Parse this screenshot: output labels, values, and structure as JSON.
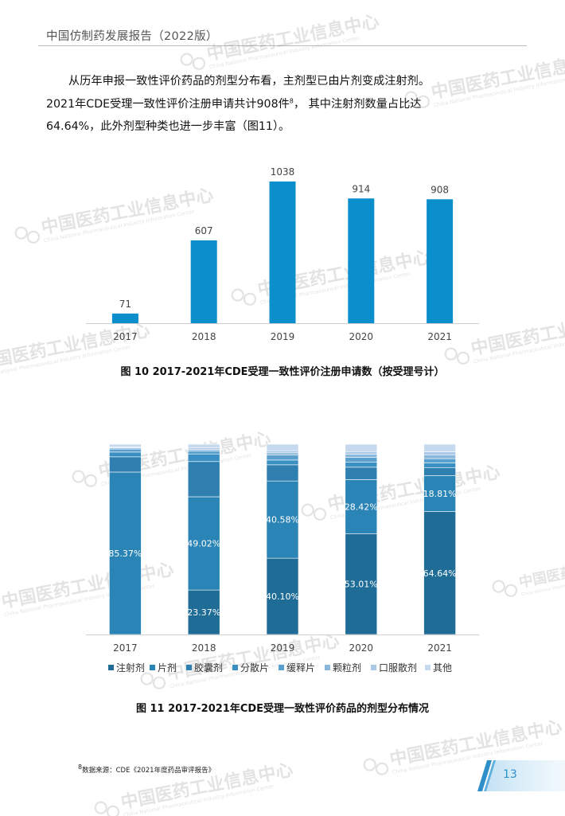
{
  "header": {
    "title": "中国仿制药发展报告（2022版）"
  },
  "body": {
    "line1": "从历年申报一致性评价药品的剂型分布看，主剂型已由片剂变成注射剂。",
    "line2_pre": "2021年CDE受理一致性评价注册申请共计908件",
    "line2_sup": "8",
    "line2_post": "，  其中注射剂数量占比达",
    "line3": "64.64%，此外剂型种类也进一步丰富（图11）。"
  },
  "figure10": {
    "caption": "图 10  2017-2021年CDE受理一致性评价注册申请数（按受理号计）"
  },
  "figure11": {
    "caption": "图 11  2017-2021年CDE受理一致性评价药品的剂型分布情况"
  },
  "footnote": {
    "sup": "8",
    "text": "数据来源：CDE《2021年度药品审评报告》"
  },
  "page": {
    "number": "13"
  },
  "watermark": {
    "name": "中国医药工业信息中心",
    "subtitle": "China National Pharmaceutical Industry Information Center"
  },
  "colors": {
    "bar": "#0a8fcc",
    "accent": "#2f8fc8",
    "series": [
      "#1f6d96",
      "#2a84b6",
      "#2f7fb0",
      "#3a8fc3",
      "#5aa0cf",
      "#8bb7dc",
      "#a9c9e6",
      "#c7d9ee"
    ]
  },
  "chart_data": [
    {
      "type": "bar",
      "categories": [
        "2017",
        "2018",
        "2019",
        "2020",
        "2021"
      ],
      "values": [
        71,
        607,
        1038,
        914,
        908
      ],
      "data_labels": [
        "71",
        "607",
        "1038",
        "914",
        "908"
      ],
      "ylim": [
        0,
        1100
      ],
      "grid": false,
      "legend": "none"
    },
    {
      "type": "bar",
      "stacked": true,
      "percent": true,
      "categories": [
        "2017",
        "2018",
        "2019",
        "2020",
        "2021"
      ],
      "ylim": [
        0,
        100
      ],
      "legend": "bottom",
      "series": [
        {
          "name": "注射剂",
          "values": [
            0,
            23.37,
            40.1,
            53.01,
            64.64
          ]
        },
        {
          "name": "片剂",
          "values": [
            85.37,
            49.02,
            40.58,
            28.42,
            18.81
          ]
        },
        {
          "name": "胶囊剂",
          "values": [
            8.0,
            18.5,
            8.5,
            6.5,
            4.3
          ]
        },
        {
          "name": "分散片",
          "values": [
            2.5,
            4.0,
            2.5,
            2.6,
            2.4
          ]
        },
        {
          "name": "缓释片",
          "values": [
            1.6,
            1.6,
            2.6,
            2.5,
            2.3
          ]
        },
        {
          "name": "颗粒剂",
          "values": [
            0.6,
            0.8,
            1.2,
            1.8,
            2.0
          ]
        },
        {
          "name": "口服散剂",
          "values": [
            0.5,
            0.9,
            1.1,
            1.3,
            1.6
          ]
        },
        {
          "name": "其他",
          "values": [
            1.43,
            1.81,
            3.42,
            3.87,
            3.95
          ]
        }
      ],
      "data_labels": [
        {
          "series": 1,
          "category": 0,
          "text": "85.37%"
        },
        {
          "series": 0,
          "category": 1,
          "text": "23.37%"
        },
        {
          "series": 1,
          "category": 1,
          "text": "49.02%"
        },
        {
          "series": 0,
          "category": 2,
          "text": "40.10%"
        },
        {
          "series": 1,
          "category": 2,
          "text": "40.58%"
        },
        {
          "series": 0,
          "category": 3,
          "text": "53.01%"
        },
        {
          "series": 1,
          "category": 3,
          "text": "28.42%"
        },
        {
          "series": 0,
          "category": 4,
          "text": "64.64%"
        },
        {
          "series": 1,
          "category": 4,
          "text": "18.81%"
        }
      ]
    }
  ]
}
